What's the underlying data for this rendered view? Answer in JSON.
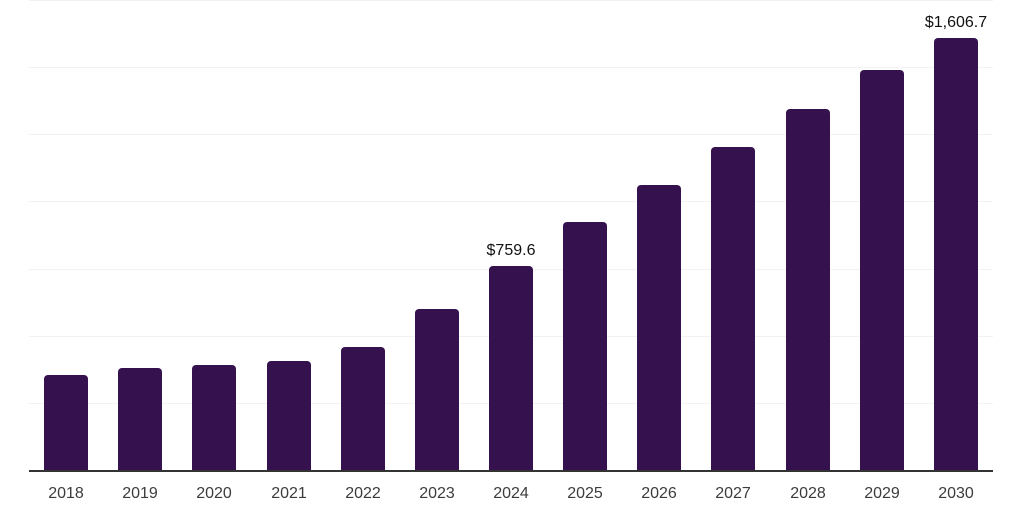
{
  "chart_data": {
    "type": "bar",
    "title": "",
    "xlabel": "",
    "ylabel": "",
    "categories": [
      "2018",
      "2019",
      "2020",
      "2021",
      "2022",
      "2023",
      "2024",
      "2025",
      "2026",
      "2027",
      "2028",
      "2029",
      "2030"
    ],
    "values": [
      354,
      380,
      392,
      407,
      458,
      600,
      759.6,
      922,
      1063,
      1203,
      1343,
      1488,
      1606.7
    ],
    "annotations": [
      {
        "category": "2024",
        "label": "$759.6"
      },
      {
        "category": "2030",
        "label": "$1,606.7"
      }
    ],
    "ylim": [
      0,
      1750
    ],
    "gridline_values": [
      250,
      500,
      750,
      1000,
      1250,
      1500,
      1750
    ],
    "grid": "horizontal-only",
    "legend": "none",
    "y_axis_labels": "none"
  },
  "colors": {
    "bar_fill": "#35124E",
    "axis_line": "#333333",
    "gridline": "#F2F2F2",
    "tick_label": "#3C3C3C",
    "value_label": "#111111",
    "background": "#FFFFFF"
  }
}
